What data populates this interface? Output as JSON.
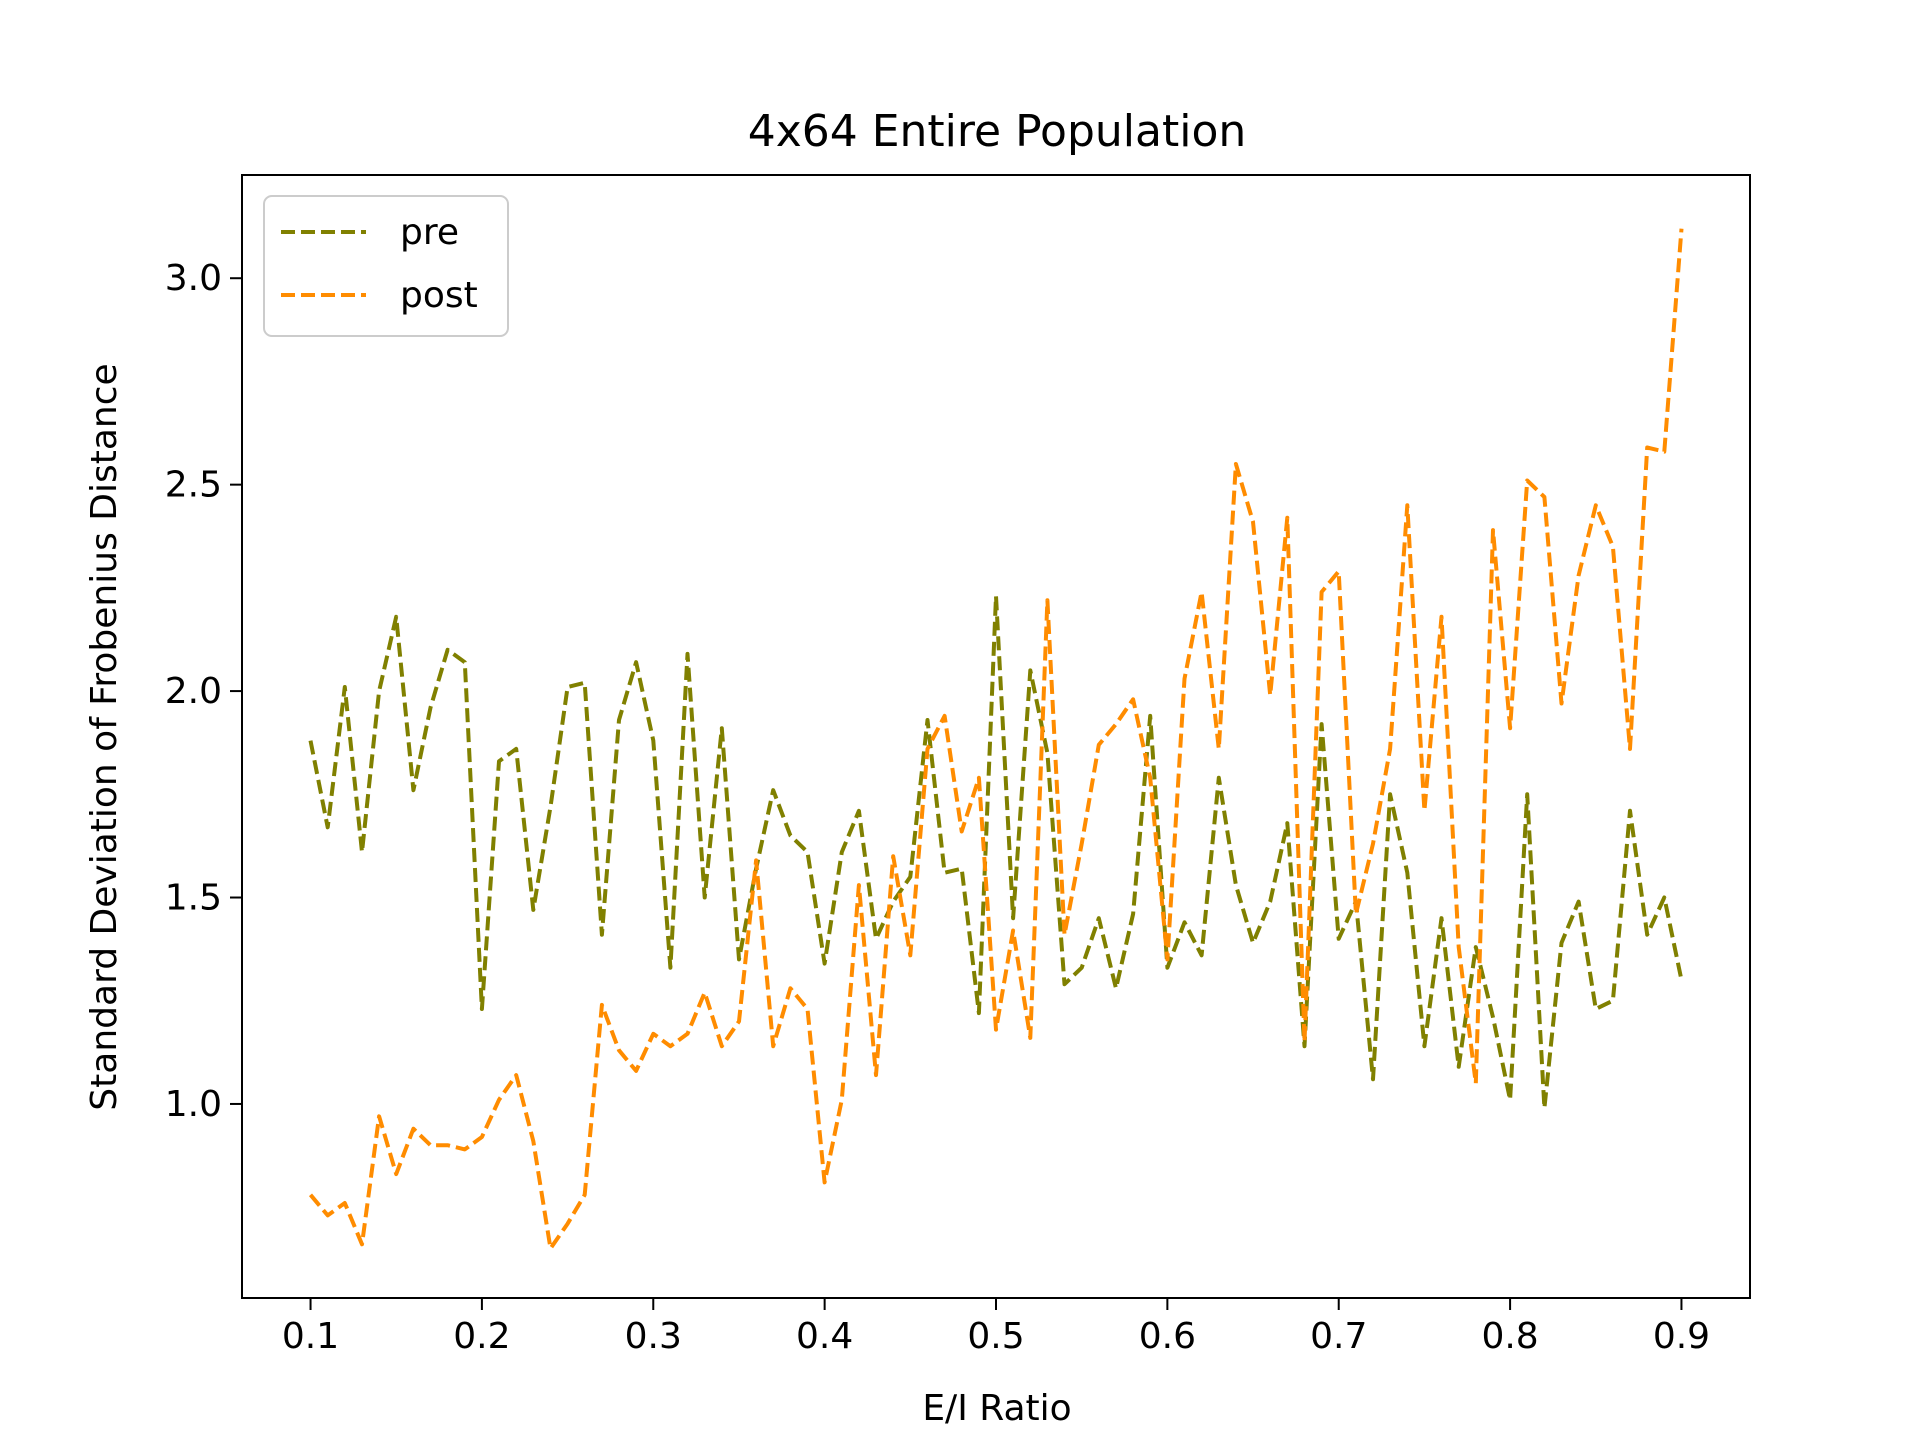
{
  "chart_data": {
    "type": "line",
    "title": "4x64 Entire Population",
    "xlabel": "E/I Ratio",
    "ylabel": "Standard Deviation of Frobenius Distance",
    "xlim": [
      0.06,
      0.94
    ],
    "ylim": [
      0.53,
      3.25
    ],
    "xticks": [
      0.1,
      0.2,
      0.3,
      0.4,
      0.5,
      0.6,
      0.7,
      0.8,
      0.9
    ],
    "xtick_labels": [
      "0.1",
      "0.2",
      "0.3",
      "0.4",
      "0.5",
      "0.6",
      "0.7",
      "0.8",
      "0.9"
    ],
    "yticks": [
      1.0,
      1.5,
      2.0,
      2.5,
      3.0
    ],
    "ytick_labels": [
      "1.0",
      "1.5",
      "2.0",
      "2.5",
      "3.0"
    ],
    "grid": false,
    "legend_position": "top-left",
    "x": [
      0.1,
      0.11,
      0.12,
      0.13,
      0.14,
      0.15,
      0.16,
      0.17,
      0.18,
      0.19,
      0.2,
      0.21,
      0.22,
      0.23,
      0.24,
      0.25,
      0.26,
      0.27,
      0.28,
      0.29,
      0.3,
      0.31,
      0.32,
      0.33,
      0.34,
      0.35,
      0.36,
      0.37,
      0.38,
      0.39,
      0.4,
      0.41,
      0.42,
      0.43,
      0.44,
      0.45,
      0.46,
      0.47,
      0.48,
      0.49,
      0.5,
      0.51,
      0.52,
      0.53,
      0.54,
      0.55,
      0.56,
      0.57,
      0.58,
      0.59,
      0.6,
      0.61,
      0.62,
      0.63,
      0.64,
      0.65,
      0.66,
      0.67,
      0.68,
      0.69,
      0.7,
      0.71,
      0.72,
      0.73,
      0.74,
      0.75,
      0.76,
      0.77,
      0.78,
      0.79,
      0.8,
      0.81,
      0.82,
      0.83,
      0.84,
      0.85,
      0.86,
      0.87,
      0.88,
      0.89,
      0.9
    ],
    "series": [
      {
        "name": "pre",
        "color": "#808000",
        "values": [
          1.88,
          1.67,
          2.01,
          1.61,
          2.0,
          2.18,
          1.76,
          1.96,
          2.1,
          2.07,
          1.23,
          1.83,
          1.86,
          1.47,
          1.72,
          2.01,
          2.02,
          1.41,
          1.93,
          2.07,
          1.88,
          1.33,
          2.09,
          1.5,
          1.91,
          1.35,
          1.57,
          1.76,
          1.65,
          1.61,
          1.34,
          1.61,
          1.71,
          1.4,
          1.49,
          1.55,
          1.93,
          1.56,
          1.57,
          1.22,
          2.23,
          1.45,
          2.05,
          1.85,
          1.29,
          1.33,
          1.45,
          1.28,
          1.46,
          1.94,
          1.33,
          1.44,
          1.36,
          1.79,
          1.53,
          1.39,
          1.49,
          1.68,
          1.14,
          1.92,
          1.4,
          1.49,
          1.06,
          1.75,
          1.56,
          1.14,
          1.45,
          1.09,
          1.38,
          1.21,
          1.01,
          1.75,
          0.99,
          1.39,
          1.49,
          1.23,
          1.25,
          1.71,
          1.41,
          1.5,
          1.3
        ]
      },
      {
        "name": "post",
        "color": "#ff8c00",
        "values": [
          0.78,
          0.73,
          0.76,
          0.66,
          0.97,
          0.83,
          0.94,
          0.9,
          0.9,
          0.89,
          0.92,
          1.01,
          1.07,
          0.91,
          0.65,
          0.71,
          0.78,
          1.24,
          1.13,
          1.08,
          1.17,
          1.14,
          1.17,
          1.27,
          1.14,
          1.2,
          1.59,
          1.14,
          1.28,
          1.23,
          0.81,
          1.01,
          1.53,
          1.07,
          1.6,
          1.36,
          1.86,
          1.94,
          1.66,
          1.79,
          1.18,
          1.42,
          1.16,
          2.22,
          1.41,
          1.63,
          1.87,
          1.92,
          1.98,
          1.79,
          1.35,
          2.03,
          2.24,
          1.86,
          2.55,
          2.41,
          1.99,
          2.42,
          1.15,
          2.24,
          2.29,
          1.46,
          1.63,
          1.86,
          2.45,
          1.71,
          2.18,
          1.38,
          1.05,
          2.39,
          1.91,
          2.51,
          2.47,
          1.97,
          2.28,
          2.45,
          2.35,
          1.86,
          2.59,
          2.58,
          3.12
        ]
      }
    ]
  }
}
